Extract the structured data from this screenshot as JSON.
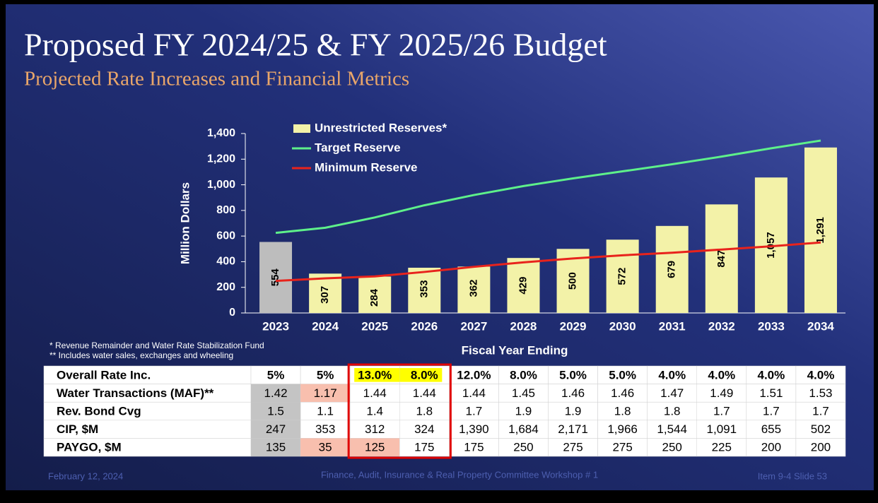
{
  "header": {
    "title": "Proposed FY 2024/25 & FY 2025/26 Budget",
    "subtitle": "Projected Rate Increases and Financial Metrics"
  },
  "chart_data": {
    "type": "bar",
    "y_label": "Million Dollars",
    "x_label": "Fiscal Year Ending",
    "categories": [
      "2023",
      "2024",
      "2025",
      "2026",
      "2027",
      "2028",
      "2029",
      "2030",
      "2031",
      "2032",
      "2033",
      "2034"
    ],
    "series": [
      {
        "name": "Unrestricted Reserves*",
        "type": "bar",
        "color": "#f3f2a8",
        "colors": [
          "#bdbdbd",
          "#f3f2a8",
          "#f3f2a8",
          "#f3f2a8",
          "#f3f2a8",
          "#f3f2a8",
          "#f3f2a8",
          "#f3f2a8",
          "#f3f2a8",
          "#f3f2a8",
          "#f3f2a8",
          "#f3f2a8"
        ],
        "values": [
          554,
          307,
          284,
          353,
          362,
          429,
          500,
          572,
          679,
          847,
          1057,
          1291
        ],
        "value_labels": [
          "554",
          "307",
          "284",
          "353",
          "362",
          "429",
          "500",
          "572",
          "679",
          "847",
          "1,057",
          "1,291"
        ]
      },
      {
        "name": "Target Reserve",
        "type": "line",
        "color": "#5ef08a",
        "values": [
          625,
          665,
          745,
          840,
          920,
          990,
          1050,
          1105,
          1160,
          1220,
          1285,
          1345
        ]
      },
      {
        "name": "Minimum Reserve",
        "type": "line",
        "color": "#e8231c",
        "values": [
          250,
          270,
          285,
          320,
          360,
          395,
          425,
          450,
          470,
          495,
          520,
          550
        ]
      }
    ],
    "ylim": [
      0,
      1400
    ],
    "yticks": [
      0,
      200,
      400,
      600,
      800,
      {
        "value": 1000,
        "label": "1,000"
      },
      {
        "value": 1200,
        "label": "1,200"
      },
      {
        "value": 1400,
        "label": "1,400"
      }
    ]
  },
  "notes": [
    "* Revenue Remainder and Water Rate Stabilization Fund",
    "** Includes water sales, exchanges and wheeling"
  ],
  "table": {
    "rows": [
      [
        "Overall Rate Inc.",
        "5%",
        "5%",
        "13.0%",
        "8.0%",
        "12.0%",
        "8.0%",
        "5.0%",
        "5.0%",
        "4.0%",
        "4.0%",
        "4.0%",
        "4.0%"
      ],
      [
        "Water Transactions (MAF)**",
        "1.42",
        "1.17",
        "1.44",
        "1.44",
        "1.44",
        "1.45",
        "1.46",
        "1.46",
        "1.47",
        "1.49",
        "1.51",
        "1.53"
      ],
      [
        "Rev. Bond Cvg",
        "1.5",
        "1.1",
        "1.4",
        "1.8",
        "1.7",
        "1.9",
        "1.9",
        "1.8",
        "1.8",
        "1.7",
        "1.7",
        "1.7"
      ],
      [
        "CIP, $M",
        "247",
        "353",
        "312",
        "324",
        "1,390",
        "1,684",
        "2,171",
        "1,966",
        "1,544",
        "1,091",
        "655",
        "502"
      ],
      [
        "PAYGO, $M",
        "135",
        "35",
        "125",
        "175",
        "175",
        "250",
        "275",
        "275",
        "250",
        "225",
        "200",
        "200"
      ]
    ]
  },
  "footer": {
    "date": "February 12, 2024",
    "committee": "Finance, Audit, Insurance & Real Property Committee  Workshop # 1",
    "item": "Item  9-4 Slide 53"
  }
}
